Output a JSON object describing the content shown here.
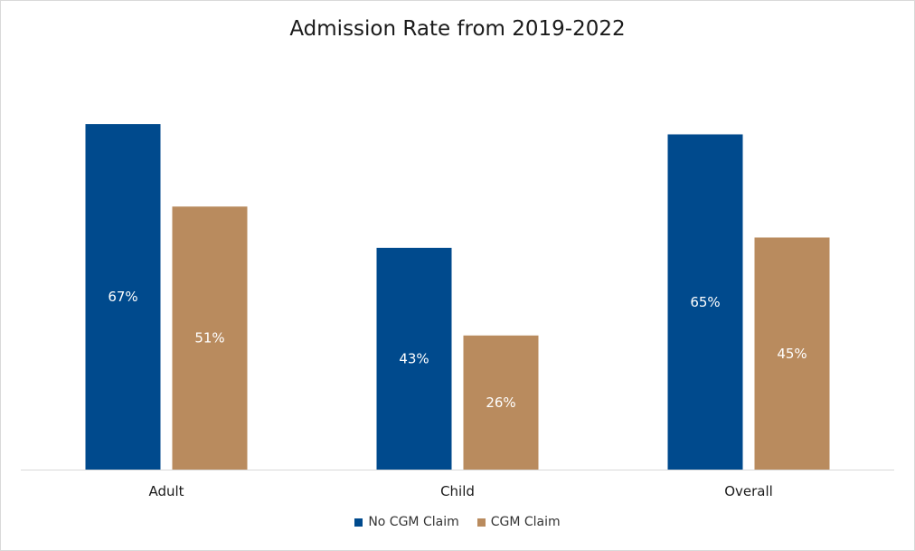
{
  "chart_data": {
    "type": "bar",
    "title": "Admission Rate from 2019-2022",
    "categories": [
      "Adult",
      "Child",
      "Overall"
    ],
    "series": [
      {
        "name": "No CGM Claim",
        "values": [
          67,
          43,
          65
        ],
        "labels": [
          "67%",
          "43%",
          "65%"
        ],
        "color": "#004A8D"
      },
      {
        "name": "CGM Claim",
        "values": [
          51,
          26,
          45
        ],
        "labels": [
          "51%",
          "26%",
          "45%"
        ],
        "color": "#B98B5E"
      }
    ],
    "ylim": [
      0,
      80
    ],
    "grid": false,
    "legend_position": "bottom"
  }
}
